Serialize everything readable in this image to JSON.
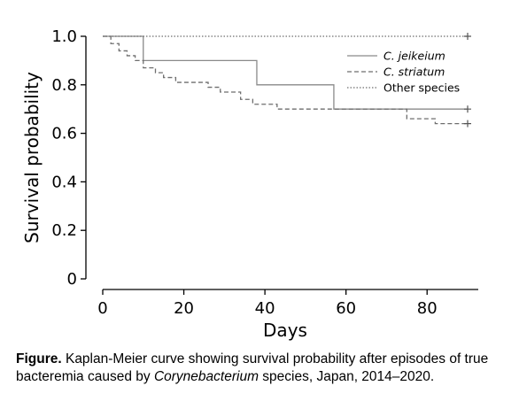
{
  "chart_data": {
    "type": "line",
    "subtype": "kaplan-meier step",
    "xlabel": "Days",
    "ylabel": "Survival probability",
    "xlim": [
      0,
      92
    ],
    "ylim": [
      0,
      1.0
    ],
    "x_ticks": [
      0,
      20,
      40,
      60,
      80
    ],
    "y_ticks": [
      "0",
      "0.2",
      "0.4",
      "0.6",
      "0.8",
      "1.0"
    ],
    "grid": false,
    "legend_position": "top-right",
    "series": [
      {
        "name": "C. jeikeium",
        "style": "solid",
        "color": "#8a8a8a",
        "steps": [
          [
            0,
            1.0
          ],
          [
            10,
            0.9
          ],
          [
            38,
            0.8
          ],
          [
            57,
            0.7
          ],
          [
            90,
            0.7
          ]
        ],
        "censor": [
          [
            90,
            0.7
          ]
        ]
      },
      {
        "name": "C. striatum",
        "style": "dashed",
        "color": "#6e6e6e",
        "steps": [
          [
            0,
            1.0
          ],
          [
            2,
            0.97
          ],
          [
            4,
            0.94
          ],
          [
            6,
            0.92
          ],
          [
            8,
            0.9
          ],
          [
            10,
            0.87
          ],
          [
            13,
            0.85
          ],
          [
            15,
            0.83
          ],
          [
            18,
            0.81
          ],
          [
            26,
            0.79
          ],
          [
            29,
            0.77
          ],
          [
            34,
            0.74
          ],
          [
            37,
            0.72
          ],
          [
            43,
            0.7
          ],
          [
            75,
            0.66
          ],
          [
            82,
            0.64
          ],
          [
            90,
            0.64
          ]
        ],
        "censor": [
          [
            90,
            0.64
          ]
        ]
      },
      {
        "name": "Other species",
        "style": "dotted",
        "color": "#6e6e6e",
        "steps": [
          [
            0,
            1.0
          ],
          [
            90,
            1.0
          ]
        ],
        "censor": [
          [
            90,
            1.0
          ]
        ]
      }
    ]
  },
  "caption": {
    "lead": "Figure.",
    "text_before": " Kaplan-Meier curve showing survival probability after episodes of true bacteremia caused by ",
    "italic": "Corynebacterium",
    "text_after": " species, Japan, 2014–2020."
  }
}
